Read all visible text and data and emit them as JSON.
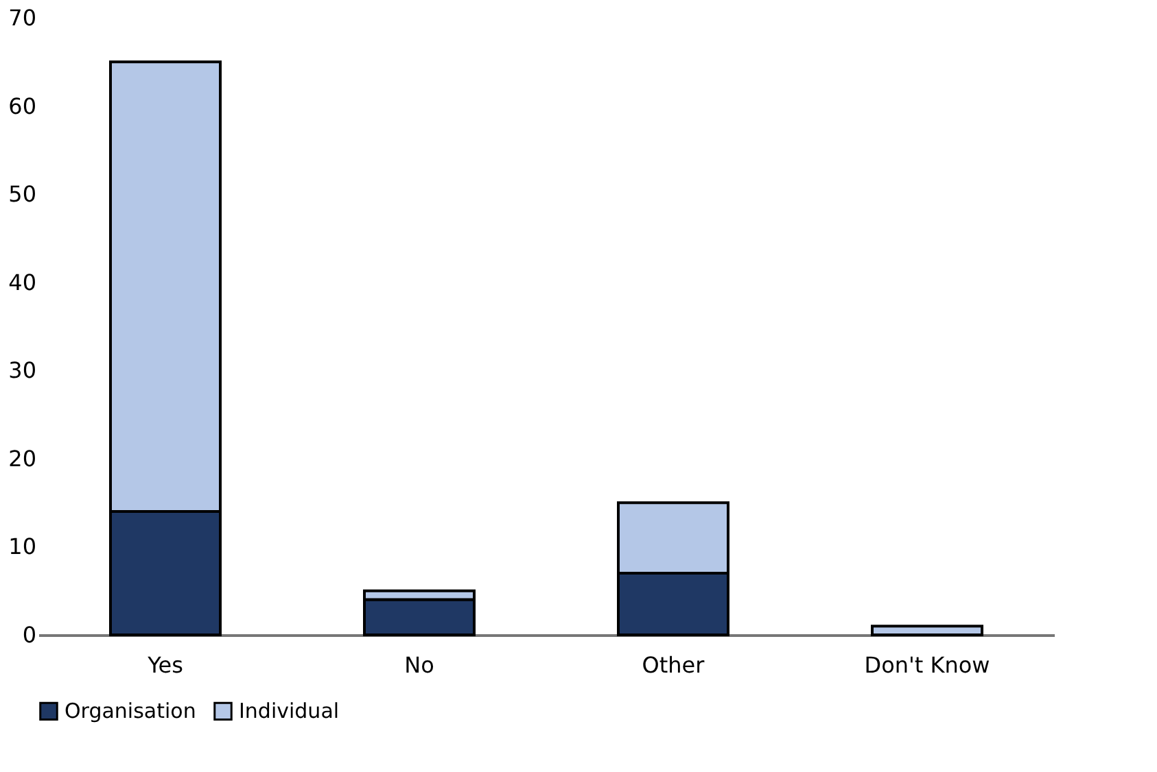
{
  "chart_data": {
    "type": "bar",
    "stacked": true,
    "categories": [
      "Yes",
      "No",
      "Other",
      "Don't Know"
    ],
    "series": [
      {
        "name": "Organisation",
        "color": "#1f3864",
        "values": [
          14,
          4,
          7,
          0
        ]
      },
      {
        "name": "Individual",
        "color": "#b4c7e7",
        "values": [
          51,
          1,
          8,
          1
        ]
      }
    ],
    "ylim": [
      0,
      70
    ],
    "yticks": [
      0,
      10,
      20,
      30,
      40,
      50,
      60,
      70
    ],
    "grid": false,
    "legend": "bottom"
  }
}
